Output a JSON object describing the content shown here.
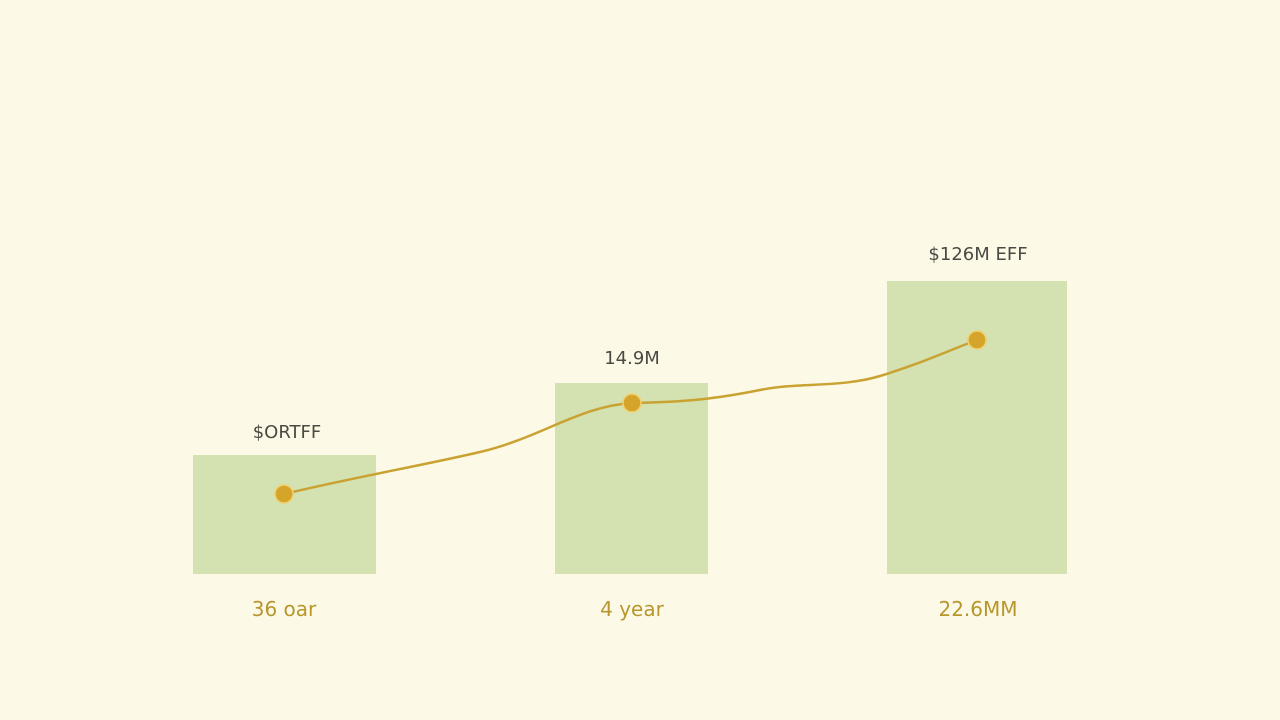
{
  "items": [
    {
      "top_label": "$ORTFF",
      "bottom_label": "36 oar"
    },
    {
      "top_label": "14.9M",
      "bottom_label": "4 year"
    },
    {
      "top_label": "$126M EFF",
      "bottom_label": "22.6MM"
    }
  ]
}
